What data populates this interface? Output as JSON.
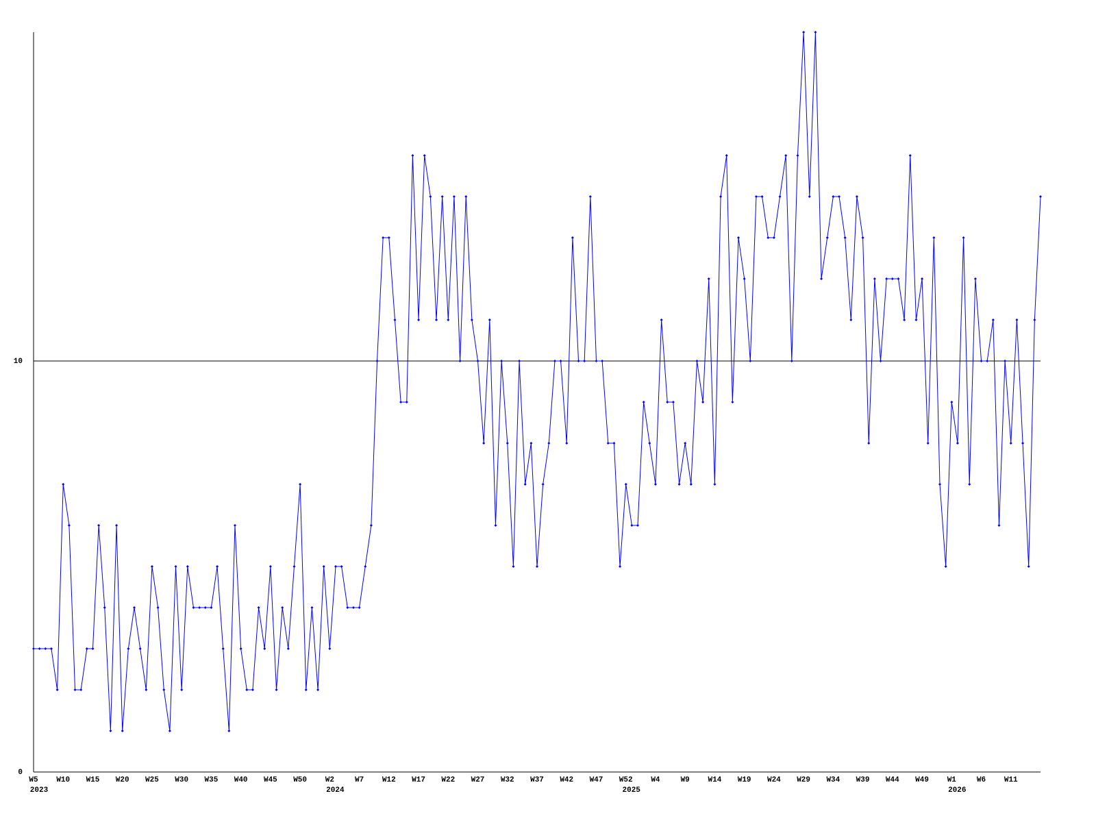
{
  "chart_data": {
    "type": "line",
    "categories": [
      [
        "W5",
        "2023"
      ],
      null,
      null,
      null,
      null,
      "W10",
      null,
      null,
      null,
      null,
      "W15",
      null,
      null,
      null,
      null,
      "W20",
      null,
      null,
      null,
      null,
      "W25",
      null,
      null,
      null,
      null,
      "W30",
      null,
      null,
      null,
      null,
      "W35",
      null,
      null,
      null,
      null,
      "W40",
      null,
      null,
      null,
      null,
      "W45",
      null,
      null,
      null,
      null,
      "W50",
      null,
      null,
      null,
      null,
      [
        "W2",
        "2024"
      ],
      null,
      null,
      null,
      null,
      "W7",
      null,
      null,
      null,
      null,
      "W12",
      null,
      null,
      null,
      null,
      "W17",
      null,
      null,
      null,
      null,
      "W22",
      null,
      null,
      null,
      null,
      "W27",
      null,
      null,
      null,
      null,
      "W32",
      null,
      null,
      null,
      null,
      "W37",
      null,
      null,
      null,
      null,
      "W42",
      null,
      null,
      null,
      null,
      "W47",
      null,
      null,
      null,
      null,
      [
        "W52",
        "2025"
      ],
      null,
      null,
      null,
      null,
      "W4",
      null,
      null,
      null,
      null,
      "W9",
      null,
      null,
      null,
      null,
      "W14",
      null,
      null,
      null,
      null,
      "W19",
      null,
      null,
      null,
      null,
      "W24",
      null,
      null,
      null,
      null,
      "W29",
      null,
      null,
      null,
      null,
      "W34",
      null,
      null,
      null,
      null,
      "W39",
      null,
      null,
      null,
      null,
      "W44",
      null,
      null,
      null,
      null,
      "W49",
      null,
      null,
      null,
      null,
      [
        "W1",
        "2026"
      ],
      null,
      null,
      null,
      null,
      "W6",
      null,
      null,
      null,
      null,
      "W11",
      null,
      null,
      null,
      null,
      null
    ],
    "series": [
      {
        "color": "#0000ff",
        "values": [
          3,
          3,
          3,
          3,
          2,
          7,
          6,
          2,
          2,
          3,
          3,
          6,
          4,
          1,
          6,
          1,
          3,
          4,
          3,
          2,
          5,
          4,
          2,
          1,
          5,
          2,
          5,
          4,
          4,
          4,
          4,
          5,
          3,
          1,
          6,
          3,
          2,
          2,
          4,
          3,
          5,
          2,
          4,
          3,
          5,
          7,
          2,
          4,
          2,
          5,
          3,
          5,
          5,
          4,
          4,
          4,
          5,
          6,
          10,
          13,
          13,
          11,
          9,
          9,
          15,
          11,
          15,
          14,
          11,
          14,
          11,
          14,
          10,
          14,
          11,
          10,
          8,
          11,
          6,
          10,
          8,
          5,
          10,
          7,
          8,
          5,
          7,
          8,
          10,
          10,
          8,
          13,
          10,
          10,
          14,
          10,
          10,
          8,
          8,
          5,
          7,
          6,
          6,
          9,
          8,
          7,
          11,
          9,
          9,
          7,
          8,
          7,
          10,
          9,
          12,
          7,
          14,
          15,
          9,
          13,
          12,
          10,
          14,
          14,
          13,
          13,
          14,
          15,
          10,
          15,
          18,
          14,
          18,
          12,
          13,
          14,
          14,
          13,
          11,
          14,
          13,
          8,
          12,
          10,
          12,
          12,
          12,
          11,
          15,
          11,
          12,
          8,
          13,
          7,
          5,
          9,
          8,
          13,
          7,
          12,
          10,
          10,
          11,
          6,
          10,
          8,
          11,
          8,
          5,
          11,
          14
        ]
      }
    ],
    "ylim": [
      0,
      18
    ],
    "yticks": [
      0,
      10
    ],
    "grid": true
  }
}
